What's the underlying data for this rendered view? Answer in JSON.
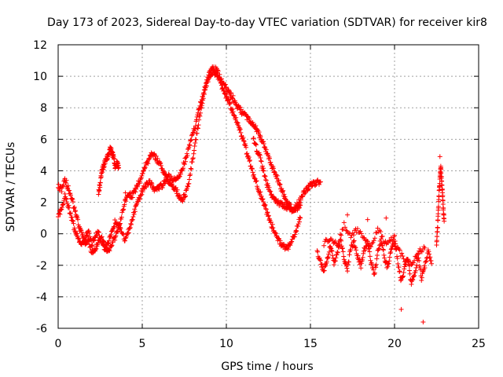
{
  "chart_data": {
    "type": "scatter",
    "title": "Day 173 of 2023, Sidereal Day-to-day VTEC variation (SDTVAR) for receiver kir8",
    "xlabel": "GPS time / hours",
    "ylabel": "SDTVAR / TECUs",
    "xlim": [
      0,
      25
    ],
    "ylim": [
      -6,
      12
    ],
    "xticks": [
      0,
      5,
      10,
      15,
      20,
      25
    ],
    "yticks": [
      -6,
      -4,
      -2,
      0,
      2,
      4,
      6,
      8,
      10,
      12
    ],
    "grid": true,
    "marker": "+",
    "series": [
      {
        "name": "SDTVAR",
        "color": "#ff0000",
        "tracks": [
          {
            "x": [
              0.0,
              0.2,
              0.4,
              0.6,
              0.8,
              1.0,
              1.2,
              1.4,
              1.6,
              1.8,
              2.0,
              2.2,
              2.4,
              2.6,
              2.8,
              3.0,
              3.2,
              3.4,
              3.6,
              3.8,
              4.0,
              4.2,
              4.4,
              4.6,
              4.8,
              5.0,
              5.2,
              5.4,
              5.6,
              5.8,
              6.0,
              6.2,
              6.4,
              6.6,
              6.8,
              7.0,
              7.2,
              7.4,
              7.6,
              7.8,
              8.0,
              8.2,
              8.4,
              8.6,
              8.8,
              9.0,
              9.2,
              9.4,
              9.6,
              9.8,
              10.0,
              10.2,
              10.4,
              10.6,
              10.8,
              11.0,
              11.2,
              11.4,
              11.6,
              11.8,
              12.0,
              12.2,
              12.4,
              12.6,
              12.8,
              13.0,
              13.2,
              13.4,
              13.6,
              13.8,
              14.0,
              14.2,
              14.4,
              14.6,
              14.8,
              15.0,
              15.2,
              15.4,
              15.6
            ],
            "y": [
              3.0,
              2.8,
              3.5,
              2.9,
              2.2,
              1.5,
              0.6,
              0.0,
              -0.6,
              -0.3,
              -1.2,
              -1.0,
              -0.4,
              -0.2,
              -0.9,
              -1.2,
              -0.6,
              -0.2,
              0.5,
              1.2,
              2.1,
              2.5,
              2.4,
              2.8,
              3.3,
              3.8,
              4.4,
              4.7,
              5.1,
              4.8,
              4.5,
              4.1,
              3.8,
              3.6,
              3.5,
              3.4,
              3.7,
              4.2,
              4.8,
              5.5,
              6.3,
              7.0,
              8.0,
              8.8,
              9.6,
              10.2,
              10.5,
              10.4,
              10.0,
              9.6,
              9.2,
              8.9,
              8.6,
              8.2,
              7.9,
              7.6,
              7.4,
              7.2,
              7.0,
              6.6,
              6.2,
              5.8,
              5.2,
              4.6,
              4.1,
              3.6,
              3.0,
              2.5,
              2.0,
              1.7,
              1.5,
              1.8,
              2.2,
              2.6,
              2.9,
              3.1,
              3.2,
              3.3,
              3.3
            ]
          },
          {
            "x": [
              0.0,
              0.2,
              0.4,
              0.6,
              0.8,
              1.0,
              1.2,
              1.4,
              1.6,
              1.8,
              2.0,
              2.2,
              2.4,
              2.6,
              2.8,
              3.0,
              3.2,
              3.4,
              3.6,
              3.8,
              4.0,
              4.2,
              4.4,
              4.6,
              4.8,
              5.0,
              5.2,
              5.4,
              5.6,
              5.8,
              6.0,
              6.2,
              6.4,
              6.6,
              6.8,
              7.0,
              7.2,
              7.4,
              7.6,
              7.8,
              8.0,
              8.2,
              8.4,
              8.6,
              8.8,
              9.0,
              9.2,
              9.4,
              9.6,
              9.8,
              10.0,
              10.2,
              10.4,
              10.6,
              10.8,
              11.0,
              11.2,
              11.4,
              11.6,
              11.8,
              12.0,
              12.2,
              12.4,
              12.6,
              12.8,
              13.0,
              13.2,
              13.4,
              13.6,
              13.8,
              14.0,
              14.2,
              14.4
            ],
            "y": [
              1.1,
              1.6,
              2.4,
              1.8,
              1.0,
              0.2,
              -0.4,
              -0.8,
              -0.3,
              0.3,
              -0.6,
              -0.2,
              0.1,
              -0.7,
              -1.0,
              -0.5,
              0.2,
              0.8,
              0.5,
              0.0,
              -0.4,
              0.2,
              0.9,
              1.6,
              2.2,
              2.7,
              3.1,
              3.3,
              3.0,
              2.8,
              2.9,
              3.1,
              3.4,
              3.3,
              3.0,
              2.8,
              2.4,
              2.2,
              2.6,
              3.4,
              4.8,
              6.1,
              7.4,
              8.5,
              9.4,
              10.0,
              10.3,
              10.1,
              9.7,
              9.2,
              8.7,
              8.2,
              7.7,
              7.2,
              6.6,
              6.0,
              5.2,
              4.5,
              3.8,
              3.2,
              2.6,
              2.0,
              1.4,
              0.8,
              0.3,
              -0.2,
              -0.6,
              -0.8,
              -0.9,
              -0.7,
              -0.2,
              0.4,
              1.0
            ]
          },
          {
            "x": [
              2.4,
              2.5,
              2.6,
              2.7,
              2.8,
              2.9,
              3.0,
              3.1,
              3.2,
              3.3,
              3.4,
              3.5,
              3.6
            ],
            "y": [
              2.6,
              3.2,
              4.0,
              4.3,
              4.6,
              4.8,
              5.1,
              5.4,
              5.2,
              4.8,
              4.2,
              4.5,
              4.2
            ]
          },
          {
            "x": [
              11.6,
              11.8,
              12.0,
              12.2,
              12.4,
              12.6,
              12.8,
              13.0,
              13.2,
              13.4,
              13.6,
              13.8,
              14.0,
              14.2,
              14.4
            ],
            "y": [
              6.0,
              5.4,
              4.8,
              4.0,
              3.2,
              2.6,
              2.2,
              2.0,
              1.9,
              1.8,
              1.7,
              1.6,
              1.5,
              1.6,
              1.8
            ]
          },
          {
            "x": [
              15.4,
              15.6,
              15.8,
              16.0,
              16.2,
              16.4,
              16.6,
              16.8,
              17.0,
              17.2,
              17.4,
              17.6,
              17.8,
              18.0,
              18.2,
              18.4,
              18.6,
              18.8,
              19.0,
              19.2,
              19.4,
              19.6,
              19.8,
              20.0,
              20.2,
              20.4,
              20.6,
              20.8,
              21.0,
              21.2,
              21.4,
              21.6,
              21.8,
              22.0,
              22.2
            ],
            "y": [
              -1.2,
              -1.8,
              -2.4,
              -1.5,
              -0.8,
              -1.9,
              -1.2,
              -0.4,
              -1.6,
              -2.2,
              -0.9,
              -0.5,
              -1.4,
              -2.0,
              -1.0,
              -0.6,
              -1.8,
              -2.6,
              -1.2,
              -0.4,
              -1.5,
              -2.2,
              -1.0,
              -0.2,
              -1.8,
              -3.0,
              -2.2,
              -1.6,
              -3.2,
              -2.5,
              -1.4,
              -2.8,
              -2.0,
              -1.2,
              -1.9
            ]
          },
          {
            "x": [
              15.8,
              16.2,
              16.6,
              17.0,
              17.4,
              17.8,
              18.2,
              18.6,
              19.0,
              19.4,
              19.8,
              20.2,
              20.6,
              21.0,
              21.4,
              21.8
            ],
            "y": [
              -0.6,
              -0.2,
              -0.8,
              0.6,
              -0.2,
              0.3,
              -0.4,
              -0.9,
              0.4,
              -0.6,
              -0.3,
              -1.0,
              -1.6,
              -2.0,
              -1.1,
              -0.9
            ]
          },
          {
            "x": [
              22.5,
              22.55,
              22.6,
              22.65,
              22.7,
              22.75,
              22.8,
              22.85,
              22.9,
              22.95
            ],
            "y": [
              -0.6,
              0.2,
              1.4,
              2.6,
              3.6,
              4.2,
              3.4,
              2.6,
              1.6,
              0.8
            ]
          }
        ],
        "outliers": [
          {
            "x": 21.7,
            "y": -5.6
          },
          {
            "x": 20.4,
            "y": -4.8
          },
          {
            "x": 22.7,
            "y": 4.9
          },
          {
            "x": 3.1,
            "y": 5.4
          },
          {
            "x": 4.0,
            "y": 2.6
          },
          {
            "x": 18.4,
            "y": 0.9
          },
          {
            "x": 19.5,
            "y": 1.0
          },
          {
            "x": 17.2,
            "y": 1.2
          }
        ]
      }
    ]
  }
}
